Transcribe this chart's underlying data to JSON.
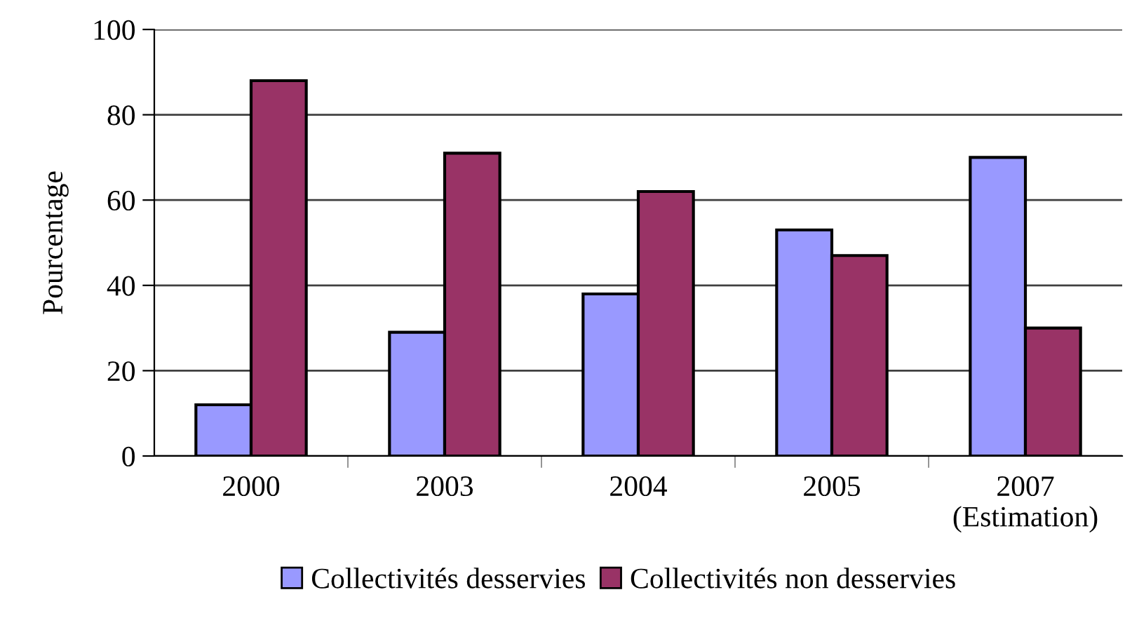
{
  "chart_data": {
    "type": "bar",
    "ylabel": "Pourcentage",
    "categories": [
      "2000",
      "2003",
      "2004",
      "2005",
      "2007\n(Estimation)"
    ],
    "series": [
      {
        "name": "Collectivités desservies",
        "color": "#9999ff",
        "values": [
          12,
          29,
          38,
          53,
          70
        ]
      },
      {
        "name": "Collectivités non desservies",
        "color": "#993366",
        "values": [
          88,
          71,
          62,
          47,
          30
        ]
      }
    ],
    "ylim": [
      0,
      100
    ],
    "yticks": [
      0,
      20,
      40,
      60,
      80,
      100
    ],
    "grid": "y",
    "legend": "bottom"
  }
}
